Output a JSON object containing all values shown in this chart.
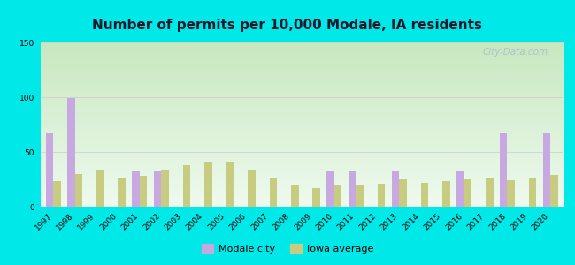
{
  "title": "Number of permits per 10,000 Modale, IA residents",
  "years": [
    1997,
    1998,
    1999,
    2000,
    2001,
    2002,
    2003,
    2004,
    2005,
    2006,
    2007,
    2008,
    2009,
    2010,
    2011,
    2012,
    2013,
    2014,
    2015,
    2016,
    2017,
    2018,
    2019,
    2020
  ],
  "modale_city": [
    67,
    99,
    0,
    0,
    32,
    32,
    0,
    0,
    0,
    0,
    0,
    0,
    0,
    32,
    32,
    0,
    32,
    0,
    0,
    32,
    0,
    67,
    0,
    67
  ],
  "iowa_average": [
    23,
    30,
    33,
    27,
    28,
    33,
    38,
    41,
    41,
    33,
    27,
    20,
    17,
    20,
    20,
    21,
    25,
    22,
    23,
    25,
    27,
    24,
    27,
    29
  ],
  "city_color": "#c8a8e0",
  "iowa_color": "#c8cc80",
  "outer_bg": "#00e8e8",
  "plot_bg_top": "#c8e8c0",
  "plot_bg_bottom": "#eefaee",
  "ylim": [
    0,
    150
  ],
  "yticks": [
    0,
    50,
    100,
    150
  ],
  "title_fontsize": 11,
  "tick_fontsize": 6.5,
  "legend_city": "Modale city",
  "legend_iowa": "Iowa average",
  "watermark": "City-Data.com"
}
